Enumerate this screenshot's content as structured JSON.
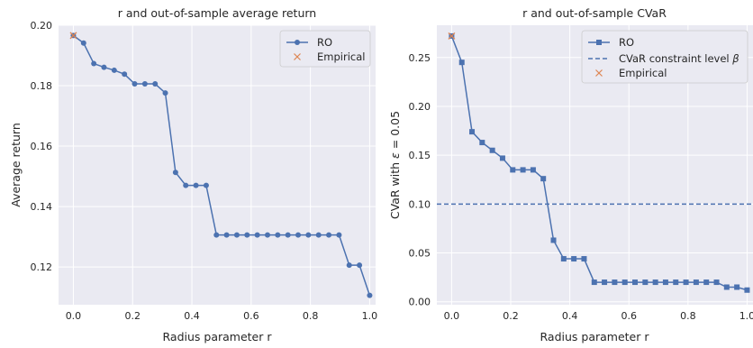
{
  "chart_data": [
    {
      "type": "line",
      "title": "r and out-of-sample average return",
      "xlabel": "Radius parameter r",
      "ylabel": "Average return",
      "xlim": [
        -0.05,
        1.02
      ],
      "ylim": [
        0.1075,
        0.2
      ],
      "xticks": [
        0.0,
        0.2,
        0.4,
        0.6,
        0.8,
        1.0
      ],
      "xtick_labels": [
        "0.0",
        "0.2",
        "0.4",
        "0.6",
        "0.8",
        "1.0"
      ],
      "yticks": [
        0.12,
        0.14,
        0.16,
        0.18,
        0.2
      ],
      "ytick_labels": [
        "0.12",
        "0.14",
        "0.16",
        "0.18",
        "0.20"
      ],
      "grid": true,
      "legend_position": "top-right",
      "series": [
        {
          "name": "RO",
          "marker": "circle",
          "color": "#4c72b0",
          "x": [
            0.0,
            0.0345,
            0.069,
            0.1034,
            0.1379,
            0.1724,
            0.2069,
            0.2414,
            0.2759,
            0.3103,
            0.3448,
            0.3793,
            0.4138,
            0.4483,
            0.4828,
            0.5172,
            0.5517,
            0.5862,
            0.6207,
            0.6552,
            0.6897,
            0.7241,
            0.7586,
            0.7931,
            0.8276,
            0.8621,
            0.8966,
            0.931,
            0.9655,
            1.0
          ],
          "y": [
            0.1966,
            0.1941,
            0.1873,
            0.1861,
            0.1851,
            0.1838,
            0.1806,
            0.1806,
            0.1806,
            0.1776,
            0.1513,
            0.147,
            0.147,
            0.147,
            0.1306,
            0.1306,
            0.1306,
            0.1306,
            0.1306,
            0.1306,
            0.1306,
            0.1306,
            0.1306,
            0.1306,
            0.1306,
            0.1306,
            0.1306,
            0.1206,
            0.1206,
            0.1106
          ]
        },
        {
          "name": "Empirical",
          "marker": "x",
          "color": "#dd8452",
          "x": [
            0.0
          ],
          "y": [
            0.1966
          ]
        }
      ]
    },
    {
      "type": "line",
      "title": "r and out-of-sample CVaR",
      "xlabel": "Radius parameter r",
      "ylabel": "CVaR with ε = 0.05",
      "ylabel_parts": [
        "CVaR with ",
        "ε",
        " = 0.05"
      ],
      "xlim": [
        -0.05,
        1.02
      ],
      "ylim": [
        -0.003,
        0.283
      ],
      "xticks": [
        0.0,
        0.2,
        0.4,
        0.6,
        0.8,
        1.0
      ],
      "xtick_labels": [
        "0.0",
        "0.2",
        "0.4",
        "0.6",
        "0.8",
        "1.0"
      ],
      "yticks": [
        0.0,
        0.05,
        0.1,
        0.15,
        0.2,
        0.25
      ],
      "ytick_labels": [
        "0.00",
        "0.05",
        "0.10",
        "0.15",
        "0.20",
        "0.25"
      ],
      "grid": true,
      "legend_position": "top-right",
      "hline": {
        "name": "CVaR constraint level β",
        "name_parts": [
          "CVaR constraint level ",
          "β"
        ],
        "y": 0.1,
        "color": "#4c72b0",
        "style": "dashed"
      },
      "series": [
        {
          "name": "RO",
          "marker": "square",
          "color": "#4c72b0",
          "x": [
            0.0,
            0.0345,
            0.069,
            0.1034,
            0.1379,
            0.1724,
            0.2069,
            0.2414,
            0.2759,
            0.3103,
            0.3448,
            0.3793,
            0.4138,
            0.4483,
            0.4828,
            0.5172,
            0.5517,
            0.5862,
            0.6207,
            0.6552,
            0.6897,
            0.7241,
            0.7586,
            0.7931,
            0.8276,
            0.8621,
            0.8966,
            0.931,
            0.9655,
            1.0
          ],
          "y": [
            0.272,
            0.245,
            0.174,
            0.163,
            0.155,
            0.147,
            0.135,
            0.135,
            0.135,
            0.126,
            0.063,
            0.044,
            0.044,
            0.044,
            0.02,
            0.02,
            0.02,
            0.02,
            0.02,
            0.02,
            0.02,
            0.02,
            0.02,
            0.02,
            0.02,
            0.02,
            0.02,
            0.015,
            0.015,
            0.012
          ]
        },
        {
          "name": "Empirical",
          "marker": "x",
          "color": "#dd8452",
          "x": [
            0.0
          ],
          "y": [
            0.272
          ]
        }
      ]
    }
  ]
}
